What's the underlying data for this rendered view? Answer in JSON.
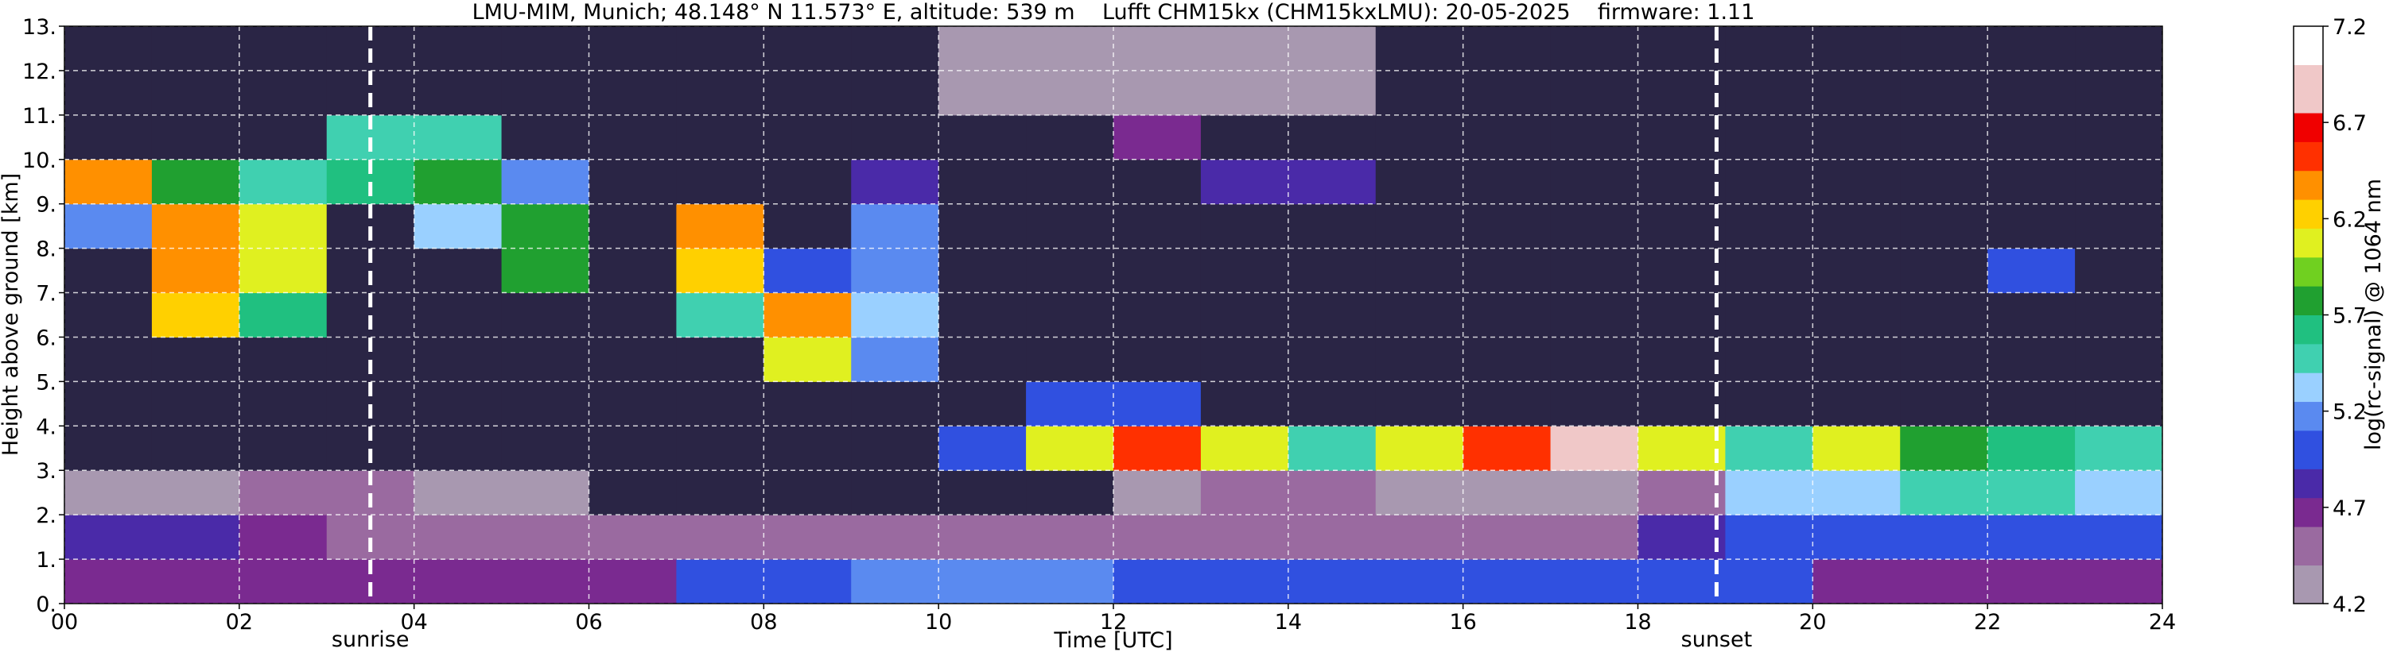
{
  "chart_data": {
    "type": "heatmap",
    "title": "LMU-MIM, Munich; 48.148° N 11.573° E, altitude: 539 m    Lufft CHM15kx (CHM15kxLMU): 20-05-2025    firmware: 1.11",
    "xlabel": "Time [UTC]",
    "ylabel": "Height above ground [km]",
    "colorbar_label": "log(rc-signal) @ 1064 nm",
    "xlim": [
      0,
      24
    ],
    "xticks": [
      {
        "value": 0,
        "label": "00"
      },
      {
        "value": 2,
        "label": "02"
      },
      {
        "value": 4,
        "label": "04"
      },
      {
        "value": 6,
        "label": "06"
      },
      {
        "value": 8,
        "label": "08"
      },
      {
        "value": 10,
        "label": "10"
      },
      {
        "value": 12,
        "label": "12"
      },
      {
        "value": 14,
        "label": "14"
      },
      {
        "value": 16,
        "label": "16"
      },
      {
        "value": 18,
        "label": "18"
      },
      {
        "value": 20,
        "label": "20"
      },
      {
        "value": 22,
        "label": "22"
      },
      {
        "value": 24,
        "label": "24"
      }
    ],
    "ylim": [
      0,
      13
    ],
    "yticks": [
      {
        "value": 0,
        "label": "0."
      },
      {
        "value": 1,
        "label": "1."
      },
      {
        "value": 2,
        "label": "2."
      },
      {
        "value": 3,
        "label": "3."
      },
      {
        "value": 4,
        "label": "4."
      },
      {
        "value": 5,
        "label": "5."
      },
      {
        "value": 6,
        "label": "6."
      },
      {
        "value": 7,
        "label": "7."
      },
      {
        "value": 8,
        "label": "8."
      },
      {
        "value": 9,
        "label": "9."
      },
      {
        "value": 10,
        "label": "10."
      },
      {
        "value": 11,
        "label": "11."
      },
      {
        "value": 12,
        "label": "12."
      },
      {
        "value": 13,
        "label": "13."
      }
    ],
    "clim": [
      4.2,
      7.2
    ],
    "cticks": [
      4.2,
      4.7,
      5.2,
      5.7,
      6.2,
      6.7,
      7.2
    ],
    "grid": true,
    "under_color": "#2a2545",
    "colormap": [
      {
        "value": 4.2,
        "color": "#a898b0"
      },
      {
        "value": 4.4,
        "color": "#9a6aa0"
      },
      {
        "value": 4.6,
        "color": "#7a2a90"
      },
      {
        "value": 4.75,
        "color": "#4a2aa8"
      },
      {
        "value": 4.9,
        "color": "#3050e0"
      },
      {
        "value": 5.1,
        "color": "#5a8af0"
      },
      {
        "value": 5.25,
        "color": "#9ad0ff"
      },
      {
        "value": 5.4,
        "color": "#40d0b0"
      },
      {
        "value": 5.55,
        "color": "#20c080"
      },
      {
        "value": 5.7,
        "color": "#20a030"
      },
      {
        "value": 5.85,
        "color": "#70d020"
      },
      {
        "value": 6.0,
        "color": "#e0f020"
      },
      {
        "value": 6.15,
        "color": "#ffd000"
      },
      {
        "value": 6.3,
        "color": "#ff9000"
      },
      {
        "value": 6.45,
        "color": "#ff3000"
      },
      {
        "value": 6.6,
        "color": "#f00000"
      },
      {
        "value": 6.75,
        "color": "#f0c8c8"
      },
      {
        "value": 7.0,
        "color": "#ffffff"
      }
    ],
    "annotations": [
      {
        "text": "sunrise",
        "x": 3.5
      },
      {
        "text": "sunset",
        "x": 18.9
      }
    ],
    "z": [
      [
        4.6,
        4.6,
        4.6,
        4.6,
        4.6,
        4.6,
        4.7,
        4.9,
        5.0,
        5.1,
        5.1,
        5.1,
        5.0,
        5.0,
        5.0,
        5.0,
        5.0,
        5.0,
        5.0,
        4.9,
        4.6,
        4.6,
        4.6,
        4.7
      ],
      [
        4.8,
        4.8,
        4.6,
        4.5,
        4.5,
        4.5,
        4.5,
        4.5,
        4.5,
        4.5,
        4.5,
        4.5,
        4.5,
        4.5,
        4.5,
        4.5,
        4.5,
        4.5,
        4.8,
        5.0,
        5.0,
        5.0,
        5.0,
        5.0
      ],
      [
        4.2,
        4.3,
        4.4,
        4.4,
        4.3,
        4.2,
        4.0,
        4.0,
        4.0,
        4.0,
        4.0,
        4.0,
        4.3,
        4.4,
        4.4,
        4.2,
        4.2,
        4.3,
        4.4,
        5.3,
        5.3,
        5.4,
        5.5,
        5.3
      ],
      [
        4.0,
        4.0,
        4.0,
        4.0,
        4.0,
        4.0,
        4.0,
        4.0,
        4.0,
        4.0,
        5.0,
        6.0,
        6.5,
        6.0,
        5.5,
        6.0,
        6.5,
        6.8,
        6.0,
        5.5,
        6.0,
        5.8,
        5.6,
        5.4
      ],
      [
        4.0,
        4.0,
        4.0,
        4.0,
        4.0,
        4.0,
        4.0,
        4.0,
        4.0,
        4.0,
        4.0,
        5.0,
        5.0,
        4.0,
        4.0,
        4.0,
        4.0,
        4.0,
        4.0,
        4.0,
        4.0,
        4.0,
        4.0,
        4.0
      ],
      [
        4.0,
        4.0,
        4.0,
        4.0,
        4.0,
        4.0,
        4.0,
        4.0,
        6.0,
        5.2,
        4.0,
        4.0,
        4.0,
        4.0,
        4.0,
        4.0,
        4.0,
        4.0,
        4.0,
        4.0,
        4.0,
        4.0,
        4.0,
        4.0
      ],
      [
        4.0,
        6.2,
        5.6,
        4.0,
        4.0,
        4.0,
        4.0,
        5.4,
        6.3,
        5.3,
        4.0,
        4.0,
        4.0,
        4.0,
        4.0,
        4.0,
        4.0,
        4.0,
        4.0,
        4.0,
        4.0,
        4.0,
        4.0,
        4.0
      ],
      [
        4.0,
        6.4,
        6.0,
        4.0,
        4.0,
        5.8,
        4.0,
        6.2,
        5.0,
        5.2,
        4.0,
        4.0,
        4.0,
        4.0,
        4.0,
        4.0,
        4.0,
        4.0,
        4.0,
        4.0,
        4.0,
        4.0,
        5.0,
        4.0
      ],
      [
        5.2,
        6.4,
        6.0,
        4.0,
        5.3,
        5.8,
        4.0,
        6.3,
        4.0,
        5.2,
        4.0,
        4.0,
        4.0,
        4.0,
        4.0,
        4.0,
        4.0,
        4.0,
        4.0,
        4.0,
        4.0,
        4.0,
        4.0,
        4.0
      ],
      [
        6.3,
        5.8,
        5.5,
        5.6,
        5.8,
        5.2,
        4.0,
        4.0,
        4.0,
        4.8,
        4.0,
        4.0,
        4.0,
        4.8,
        4.8,
        4.0,
        4.0,
        4.0,
        4.0,
        4.0,
        4.0,
        4.0,
        4.0,
        4.0
      ],
      [
        4.0,
        4.0,
        4.0,
        5.4,
        5.5,
        4.0,
        4.0,
        4.0,
        4.0,
        4.0,
        4.0,
        4.0,
        4.6,
        4.0,
        4.0,
        4.0,
        4.0,
        4.0,
        4.0,
        4.0,
        4.0,
        4.0,
        4.0,
        4.0
      ],
      [
        4.0,
        4.0,
        4.0,
        4.0,
        4.0,
        4.0,
        4.0,
        4.0,
        4.0,
        4.0,
        4.2,
        4.2,
        4.2,
        4.2,
        4.2,
        4.0,
        4.0,
        4.0,
        4.0,
        4.0,
        4.0,
        4.0,
        4.0,
        4.0
      ],
      [
        4.0,
        4.0,
        4.0,
        4.0,
        4.0,
        4.0,
        4.0,
        4.0,
        4.0,
        4.0,
        4.2,
        4.2,
        4.2,
        4.2,
        4.2,
        4.0,
        4.0,
        4.0,
        4.0,
        4.0,
        4.0,
        4.0,
        4.0,
        4.0
      ]
    ]
  }
}
